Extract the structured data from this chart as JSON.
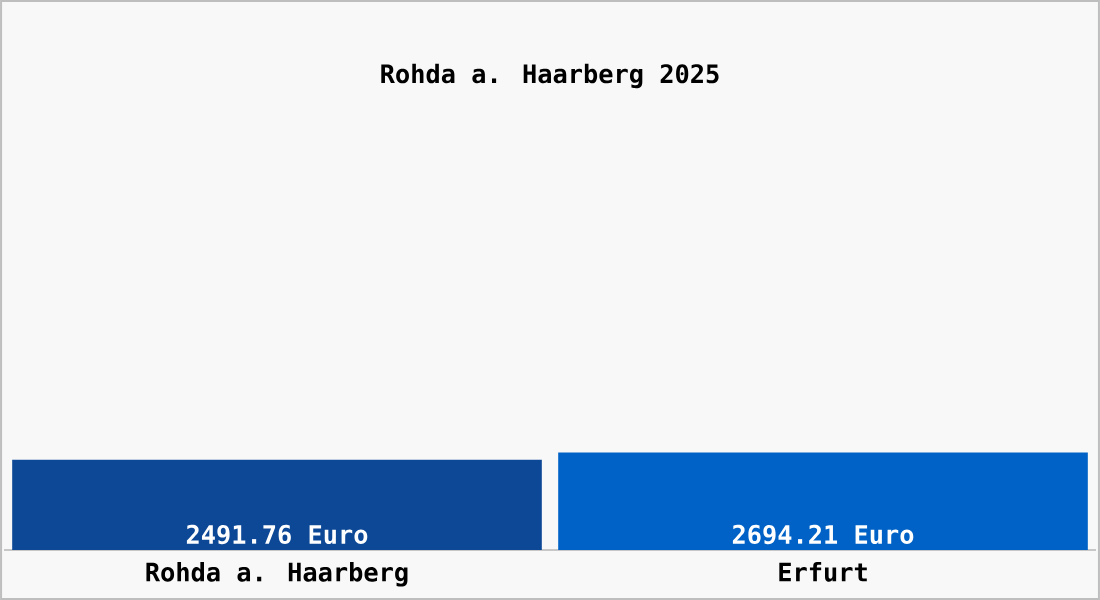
{
  "chart_data": {
    "type": "bar",
    "title": "Rohda a. Haarberg 2025",
    "categories": [
      "Rohda a. Haarberg",
      "Erfurt"
    ],
    "values": [
      2491.76,
      2694.21
    ],
    "colors": [
      "#0d4896",
      "#0062c6"
    ],
    "value_labels": [
      "2491.76 Euro",
      "2694.21 Euro"
    ]
  }
}
